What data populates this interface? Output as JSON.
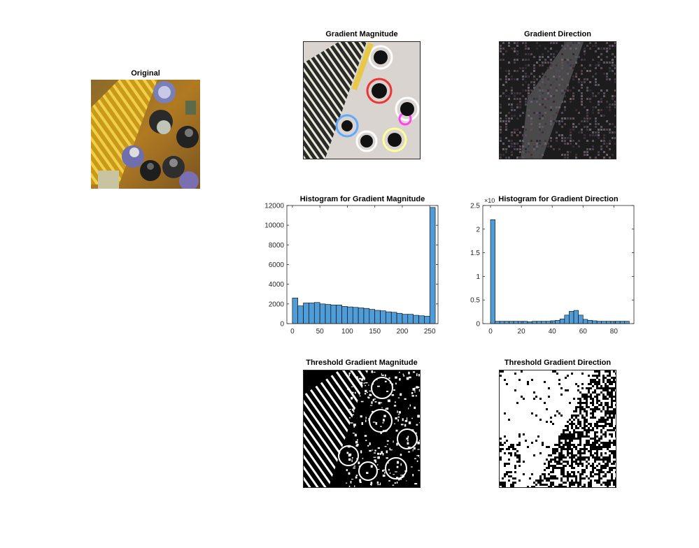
{
  "panels": {
    "original": {
      "title": "Original"
    },
    "grad_mag": {
      "title": "Gradient Magnitude"
    },
    "grad_dir": {
      "title": "Gradient Direction"
    },
    "thr_mag": {
      "title": "Threshold Gradient Magnitude"
    },
    "thr_dir": {
      "title": "Threshold Gradient Direction"
    }
  },
  "colors": {
    "bar": "#4f9cd6",
    "axis": "#262626"
  },
  "chart_data": [
    {
      "type": "bar",
      "title": "Histogram for Gradient Magnitude",
      "xlabel": "",
      "ylabel": "",
      "xlim": [
        -10,
        265
      ],
      "ylim": [
        0,
        12000
      ],
      "xticks": [
        0,
        50,
        100,
        150,
        200,
        250
      ],
      "yticks": [
        0,
        2000,
        4000,
        6000,
        8000,
        10000,
        12000
      ],
      "ytick_labels": [
        "0",
        "2000",
        "4000",
        "6000",
        "8000",
        "10000",
        "12000"
      ],
      "bin_width": 10,
      "x": [
        5,
        15,
        25,
        35,
        45,
        55,
        65,
        75,
        85,
        95,
        105,
        115,
        125,
        135,
        145,
        155,
        165,
        175,
        185,
        195,
        205,
        215,
        225,
        235,
        245,
        255
      ],
      "values": [
        2600,
        1800,
        2100,
        2100,
        2150,
        2000,
        1950,
        1900,
        1900,
        1750,
        1700,
        1650,
        1600,
        1550,
        1450,
        1350,
        1300,
        1200,
        1150,
        1050,
        950,
        950,
        850,
        800,
        750,
        11800
      ],
      "exponent_label": ""
    },
    {
      "type": "bar",
      "title": "Histogram for Gradient Direction",
      "xlabel": "",
      "ylabel": "",
      "xlim": [
        -5,
        93
      ],
      "ylim": [
        0,
        2.5
      ],
      "xticks": [
        0,
        20,
        40,
        60,
        80
      ],
      "yticks": [
        0,
        0.5,
        1,
        1.5,
        2,
        2.5
      ],
      "ytick_labels": [
        "0",
        "0.5",
        "1",
        "1.5",
        "2",
        "2.5"
      ],
      "bin_width": 3,
      "x": [
        1.5,
        4.5,
        7.5,
        10.5,
        13.5,
        16.5,
        19.5,
        22.5,
        25.5,
        28.5,
        31.5,
        34.5,
        37.5,
        40.5,
        43.5,
        46.5,
        49.5,
        52.5,
        55.5,
        58.5,
        61.5,
        64.5,
        67.5,
        70.5,
        73.5,
        76.5,
        79.5,
        82.5,
        85.5,
        88.5
      ],
      "values": [
        2.2,
        0.05,
        0.05,
        0.05,
        0.05,
        0.05,
        0.05,
        0.05,
        0.04,
        0.05,
        0.05,
        0.05,
        0.05,
        0.06,
        0.07,
        0.1,
        0.18,
        0.26,
        0.28,
        0.18,
        0.09,
        0.07,
        0.06,
        0.05,
        0.05,
        0.05,
        0.05,
        0.05,
        0.05,
        0.05
      ],
      "exponent_label": "×10"
    }
  ]
}
